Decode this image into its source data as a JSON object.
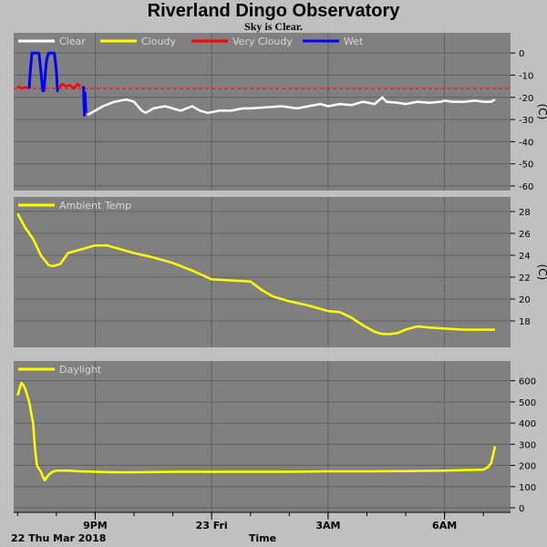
{
  "title": "Riverland Dingo Observatory",
  "subtitle": "Sky is Clear.",
  "footer": {
    "date_label": "22 Thu Mar 2018",
    "xlabel": "Time"
  },
  "x_ticks": [
    {
      "label": "9PM",
      "t": 21.0
    },
    {
      "label": "23 Fri",
      "t": 24.0
    },
    {
      "label": "3AM",
      "t": 27.0
    },
    {
      "label": "6AM",
      "t": 30.0
    }
  ],
  "colors": {
    "panel": "#808080",
    "grid": "#606060",
    "clear": "#ffffff",
    "cloudy": "#ffff00",
    "very_cloudy": "#ff0000",
    "wet": "#0000ff",
    "threshold": "#ff0000"
  },
  "chart_data": [
    {
      "type": "line",
      "xlabel": "Time",
      "ylabel": "(C)",
      "ylim": [
        -60,
        5
      ],
      "yticks": [
        0,
        -10,
        -20,
        -30,
        -40,
        -50,
        -60
      ],
      "xlim": [
        18.9,
        31.7
      ],
      "grid": true,
      "legend_position": "top-left",
      "legend": [
        "Clear",
        "Cloudy",
        "Very Cloudy",
        "Wet"
      ],
      "threshold": -16,
      "series": [
        {
          "name": "Very Cloudy",
          "color": "#ff0000",
          "x": [
            19.0,
            19.1,
            19.2,
            19.3
          ],
          "y": [
            -15,
            -16,
            -15.5,
            -16
          ]
        },
        {
          "name": "Wet",
          "color": "#0000ff",
          "x": [
            19.3,
            19.33,
            19.37,
            19.4,
            19.45,
            19.5,
            19.55,
            19.6,
            19.65,
            19.68,
            19.72,
            19.75,
            19.8,
            19.85,
            19.9,
            19.95,
            20.0,
            20.03,
            20.06
          ],
          "y": [
            -16,
            -8,
            0,
            0,
            0,
            0,
            0,
            -8,
            -17,
            -17,
            -8,
            -3,
            0,
            0,
            0,
            0,
            -8,
            -17,
            -17
          ]
        },
        {
          "name": "Very Cloudy",
          "color": "#ff0000",
          "x": [
            20.06,
            20.15,
            20.25,
            20.35,
            20.45,
            20.55,
            20.62
          ],
          "y": [
            -16,
            -14,
            -15,
            -14.5,
            -16,
            -14,
            -15
          ]
        },
        {
          "name": "Wet",
          "color": "#0000ff",
          "x": [
            20.7,
            20.72,
            20.74,
            20.76
          ],
          "y": [
            -15,
            -28,
            -18,
            -27
          ]
        },
        {
          "name": "Clear",
          "color": "#ffffff",
          "x": [
            20.8,
            21.0,
            21.2,
            21.5,
            21.8,
            22.0,
            22.2,
            22.3,
            22.5,
            22.8,
            23.0,
            23.2,
            23.5,
            23.7,
            23.9,
            24.2,
            24.5,
            24.8,
            25.0,
            25.4,
            25.8,
            26.2,
            26.5,
            26.8,
            27.0,
            27.3,
            27.6,
            27.9,
            28.2,
            28.4,
            28.5,
            28.8,
            29.0,
            29.3,
            29.6,
            29.9,
            30.0,
            30.2,
            30.5,
            30.8,
            31.0,
            31.2,
            31.3
          ],
          "y": [
            -28,
            -26,
            -24,
            -22,
            -21,
            -22,
            -26,
            -27,
            -25,
            -24,
            -25,
            -26,
            -24,
            -26,
            -27,
            -26,
            -26,
            -25,
            -25,
            -24.5,
            -24,
            -25,
            -24,
            -23,
            -24,
            -23,
            -23.5,
            -22,
            -23,
            -20,
            -22,
            -22.5,
            -23,
            -22,
            -22.5,
            -22,
            -21.5,
            -22,
            -22,
            -21.5,
            -22,
            -22,
            -21
          ]
        }
      ]
    },
    {
      "type": "line",
      "ylabel": "(C)",
      "ylim": [
        16,
        28.5
      ],
      "yticks": [
        18,
        20,
        22,
        24,
        26,
        28
      ],
      "xlim": [
        18.9,
        31.7
      ],
      "grid": true,
      "legend_position": "top-left",
      "legend": [
        "Ambient Temp"
      ],
      "series": [
        {
          "name": "Ambient Temp",
          "color": "#ffff00",
          "x": [
            19.0,
            19.2,
            19.4,
            19.6,
            19.8,
            19.9,
            20.1,
            20.3,
            20.5,
            20.7,
            21.0,
            21.3,
            21.6,
            22.0,
            22.5,
            23.0,
            23.5,
            24.0,
            24.5,
            25.0,
            25.3,
            25.6,
            26.0,
            26.5,
            27.0,
            27.3,
            27.6,
            27.9,
            28.2,
            28.4,
            28.6,
            28.8,
            29.0,
            29.3,
            29.6,
            30.0,
            30.5,
            31.0,
            31.3
          ],
          "y": [
            27.8,
            26.5,
            25.5,
            24,
            23.1,
            23.0,
            23.2,
            24.2,
            24.4,
            24.6,
            24.9,
            24.9,
            24.6,
            24.2,
            23.8,
            23.3,
            22.6,
            21.8,
            21.7,
            21.6,
            20.8,
            20.2,
            19.8,
            19.4,
            18.9,
            18.8,
            18.3,
            17.6,
            17.0,
            16.8,
            16.8,
            16.9,
            17.2,
            17.5,
            17.4,
            17.3,
            17.2,
            17.2,
            17.2
          ]
        }
      ]
    },
    {
      "type": "line",
      "ylabel": "",
      "ylim": [
        0,
        650
      ],
      "yticks": [
        0,
        100,
        200,
        300,
        400,
        500,
        600
      ],
      "xlim": [
        18.9,
        31.7
      ],
      "grid": true,
      "legend_position": "top-left",
      "legend": [
        "Daylight"
      ],
      "series": [
        {
          "name": "Daylight",
          "color": "#ffff00",
          "x": [
            19.0,
            19.05,
            19.1,
            19.15,
            19.2,
            19.3,
            19.4,
            19.45,
            19.5,
            19.6,
            19.65,
            19.7,
            19.8,
            19.9,
            20.0,
            20.3,
            20.6,
            21.0,
            21.5,
            22.0,
            23.0,
            24.0,
            25.0,
            26.0,
            27.0,
            28.0,
            29.0,
            30.0,
            30.5,
            31.0,
            31.1,
            31.2,
            31.25,
            31.3
          ],
          "y": [
            530,
            560,
            590,
            580,
            560,
            500,
            400,
            280,
            200,
            170,
            150,
            130,
            155,
            170,
            175,
            175,
            172,
            170,
            168,
            168,
            170,
            170,
            170,
            170,
            172,
            172,
            173,
            175,
            178,
            180,
            190,
            210,
            250,
            290
          ]
        }
      ]
    }
  ]
}
